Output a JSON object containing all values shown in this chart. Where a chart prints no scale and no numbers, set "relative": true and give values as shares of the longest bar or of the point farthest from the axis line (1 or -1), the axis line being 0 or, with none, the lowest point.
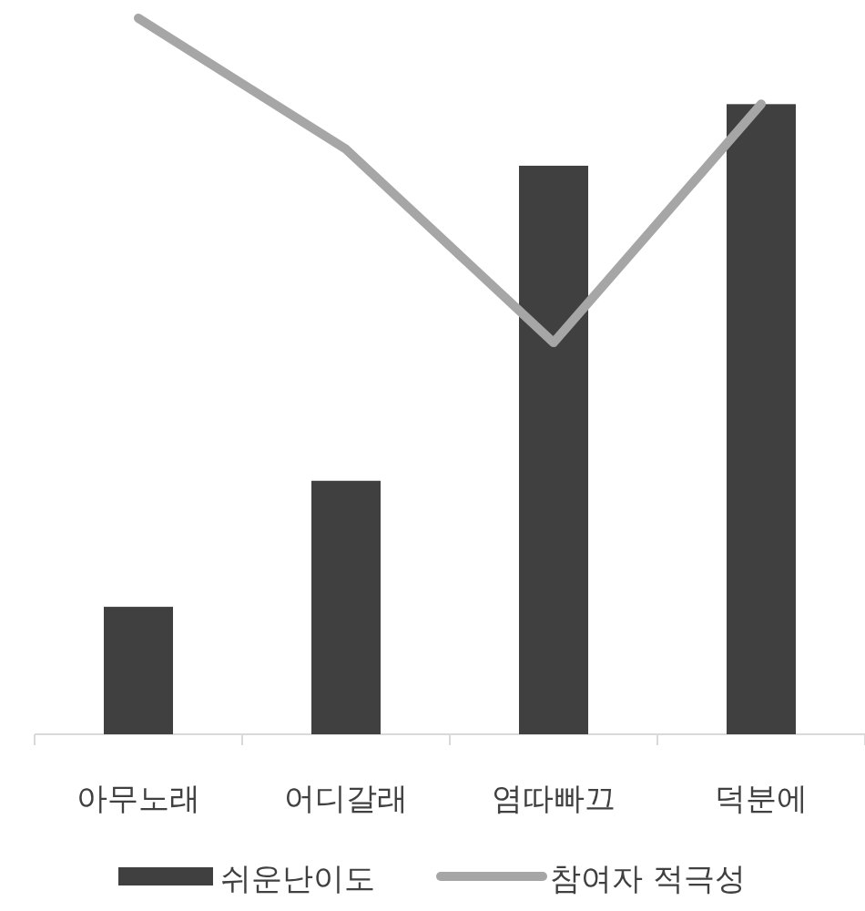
{
  "chart_data": {
    "type": "bar",
    "relative": true,
    "legend": "bottom",
    "categories": [
      "아무노래",
      "어디갈래",
      "염따빠끄",
      "덕분에"
    ],
    "series": [
      {
        "name": "쉬운난이도",
        "color": "#404040",
        "values": [
          0.178,
          0.354,
          0.794,
          0.88
        ]
      },
      {
        "name": "참여자 적극성",
        "type": "line",
        "color": "#a6a6a6",
        "values": [
          1,
          0.817,
          0.547,
          0.88
        ]
      }
    ]
  }
}
